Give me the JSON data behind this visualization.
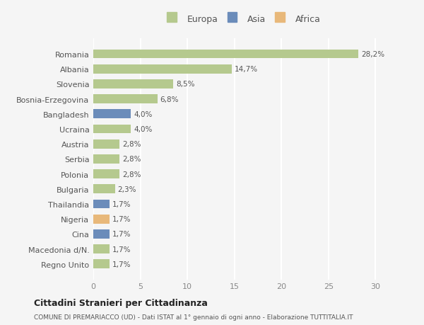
{
  "countries": [
    "Romania",
    "Albania",
    "Slovenia",
    "Bosnia-Erzegovina",
    "Bangladesh",
    "Ucraina",
    "Austria",
    "Serbia",
    "Polonia",
    "Bulgaria",
    "Thailandia",
    "Nigeria",
    "Cina",
    "Macedonia d/N.",
    "Regno Unito"
  ],
  "values": [
    28.2,
    14.7,
    8.5,
    6.8,
    4.0,
    4.0,
    2.8,
    2.8,
    2.8,
    2.3,
    1.7,
    1.7,
    1.7,
    1.7,
    1.7
  ],
  "labels": [
    "28,2%",
    "14,7%",
    "8,5%",
    "6,8%",
    "4,0%",
    "4,0%",
    "2,8%",
    "2,8%",
    "2,8%",
    "2,3%",
    "1,7%",
    "1,7%",
    "1,7%",
    "1,7%",
    "1,7%"
  ],
  "continents": [
    "Europa",
    "Europa",
    "Europa",
    "Europa",
    "Asia",
    "Europa",
    "Europa",
    "Europa",
    "Europa",
    "Europa",
    "Asia",
    "Africa",
    "Asia",
    "Europa",
    "Europa"
  ],
  "colors": {
    "Europa": "#b5c98e",
    "Asia": "#6b8cba",
    "Africa": "#e8b87a"
  },
  "legend_colors": {
    "Europa": "#b5c98e",
    "Asia": "#6b8cba",
    "Africa": "#e8b87a"
  },
  "xlim": [
    0,
    32
  ],
  "xticks": [
    0,
    5,
    10,
    15,
    20,
    25,
    30
  ],
  "title": "Cittadini Stranieri per Cittadinanza",
  "subtitle": "COMUNE DI PREMARIACCO (UD) - Dati ISTAT al 1° gennaio di ogni anno - Elaborazione TUTTITALIA.IT",
  "bg_color": "#f5f5f5",
  "grid_color": "#ffffff",
  "bar_height": 0.6
}
